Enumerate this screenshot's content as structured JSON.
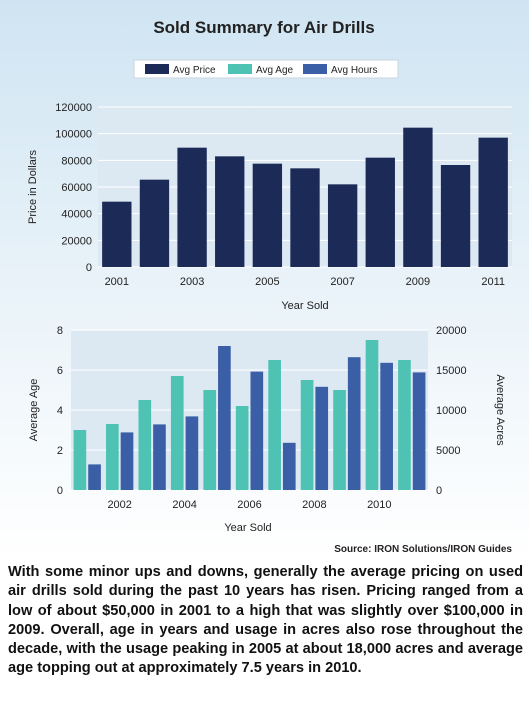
{
  "figure": {
    "title": "Sold Summary for Air Drills",
    "source": "Source: IRON Solutions/IRON Guides",
    "legend": [
      {
        "label": "Avg Price",
        "color": "#1b2a57"
      },
      {
        "label": "Avg Age",
        "color": "#4ec3b3"
      },
      {
        "label": "Avg Hours",
        "color": "#3b5fa6"
      }
    ]
  },
  "caption": "With some minor ups and downs, generally the average pricing on used air drills sold during the past 10 years has risen. Pricing ranged from a low of about $50,000 in 2001 to a high that was slightly over $100,000 in 2009. Overall, age in years and usage in acres also rose throughout the decade, with the usage peaking in 2005 at about 18,000 acres and average age topping out at approximately 7.5 years in 2010.",
  "chart_data": [
    {
      "type": "bar",
      "categories": [
        "2001",
        "2002",
        "2003",
        "2004",
        "2005",
        "2006",
        "2007",
        "2008",
        "2009",
        "2010",
        "2011"
      ],
      "tick_labels": [
        "2001",
        "",
        "2003",
        "",
        "2005",
        "",
        "2007",
        "",
        "2009",
        "",
        "2011"
      ],
      "series": [
        {
          "name": "Avg Price",
          "color": "#1b2a57",
          "values": [
            49000,
            65500,
            89500,
            83000,
            77500,
            74000,
            62000,
            82000,
            104500,
            76500,
            97000
          ]
        }
      ],
      "xlabel": "Year Sold",
      "ylabel": "Price in Dollars",
      "ylim": [
        0,
        120000
      ],
      "yticks": [
        0,
        20000,
        40000,
        60000,
        80000,
        100000,
        120000
      ],
      "grid": true
    },
    {
      "type": "bar",
      "categories": [
        "2001",
        "2002",
        "2003",
        "2004",
        "2005",
        "2006",
        "2007",
        "2008",
        "2009",
        "2010",
        "2011"
      ],
      "tick_labels": [
        "",
        "2002",
        "",
        "2004",
        "",
        "2006",
        "",
        "2008",
        "",
        "2010",
        ""
      ],
      "series": [
        {
          "name": "Avg Age",
          "axis": "left",
          "color": "#4ec3b3",
          "values": [
            3.0,
            3.3,
            4.5,
            5.7,
            5.0,
            4.2,
            6.5,
            5.5,
            5.0,
            7.5,
            6.5
          ]
        },
        {
          "name": "Avg Hours",
          "axis": "right",
          "color": "#3b5fa6",
          "values": [
            3200,
            7200,
            8200,
            9200,
            18000,
            14800,
            5900,
            12900,
            16600,
            15900,
            14700
          ]
        }
      ],
      "xlabel": "Year Sold",
      "ylabel": "Average Age",
      "ylabel_right": "Average Acres",
      "ylim": [
        0,
        8
      ],
      "ylim_right": [
        0,
        20000
      ],
      "yticks": [
        0,
        2,
        4,
        6,
        8
      ],
      "yticks_right": [
        0,
        5000,
        10000,
        15000,
        20000
      ],
      "grid": true
    }
  ]
}
